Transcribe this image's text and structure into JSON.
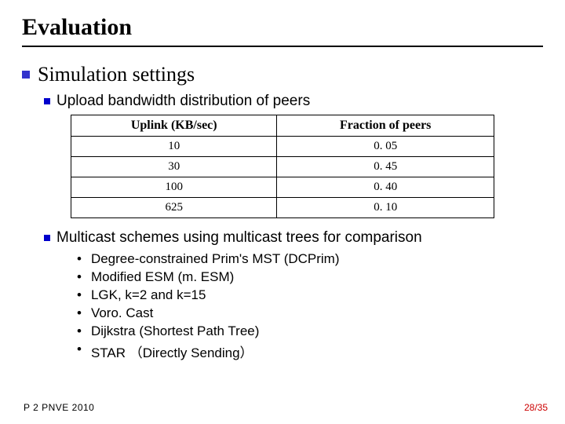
{
  "title": "Evaluation",
  "section": "Simulation settings",
  "sub1": "Upload bandwidth distribution of peers",
  "table": {
    "headers": [
      "Uplink (KB/sec)",
      "Fraction of peers"
    ],
    "rows": [
      [
        "10",
        "0. 05"
      ],
      [
        "30",
        "0. 45"
      ],
      [
        "100",
        "0. 40"
      ],
      [
        "625",
        "0. 10"
      ]
    ],
    "col_widths": [
      "50%",
      "50%"
    ],
    "border_color": "#000000",
    "header_fontsize": 16,
    "cell_fontsize": 15
  },
  "sub2": "Multicast schemes using multicast trees for comparison",
  "schemes": [
    "Degree-constrained Prim's MST (DCPrim)",
    "Modified ESM (m. ESM)",
    "LGK, k=2 and k=15",
    "Voro. Cast",
    "Dijkstra (Shortest Path Tree)",
    "STAR （Directly Sending）"
  ],
  "footer_left": "P 2 PNVE 2010",
  "footer_right": "28/35",
  "colors": {
    "bullet": "#3333cc",
    "pagenum": "#cc0000",
    "background": "#ffffff"
  }
}
